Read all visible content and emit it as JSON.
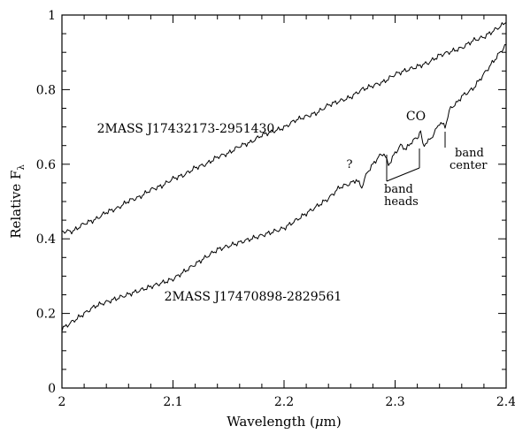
{
  "chart_data": {
    "type": "line",
    "xlabel": "Wavelength (μm)",
    "ylabel": "Relative F",
    "ylabel_subscript": "λ",
    "xlim": [
      2.0,
      2.4
    ],
    "ylim": [
      0.0,
      1.0
    ],
    "xticks": [
      "2",
      "2.1",
      "2.2",
      "2.3",
      "2.4"
    ],
    "yticks": [
      "0",
      "0.2",
      "0.4",
      "0.6",
      "0.8",
      "1"
    ],
    "grid": false,
    "series": [
      {
        "name": "2MASS J17432173-2951430",
        "x": [
          2.0,
          2.01,
          2.02,
          2.03,
          2.04,
          2.05,
          2.06,
          2.07,
          2.08,
          2.09,
          2.1,
          2.11,
          2.12,
          2.13,
          2.14,
          2.15,
          2.16,
          2.17,
          2.18,
          2.19,
          2.2,
          2.21,
          2.22,
          2.23,
          2.24,
          2.25,
          2.26,
          2.27,
          2.28,
          2.29,
          2.3,
          2.31,
          2.32,
          2.33,
          2.34,
          2.35,
          2.36,
          2.37,
          2.38,
          2.39,
          2.4
        ],
        "values": [
          0.42,
          0.42,
          0.44,
          0.45,
          0.47,
          0.48,
          0.5,
          0.51,
          0.53,
          0.54,
          0.56,
          0.57,
          0.59,
          0.6,
          0.62,
          0.63,
          0.65,
          0.66,
          0.68,
          0.69,
          0.7,
          0.72,
          0.73,
          0.74,
          0.76,
          0.77,
          0.78,
          0.8,
          0.81,
          0.82,
          0.84,
          0.85,
          0.86,
          0.87,
          0.89,
          0.9,
          0.91,
          0.93,
          0.94,
          0.96,
          0.98
        ]
      },
      {
        "name": "2MASS J17470898-2829561",
        "x": [
          2.0,
          2.01,
          2.02,
          2.03,
          2.04,
          2.05,
          2.06,
          2.07,
          2.08,
          2.09,
          2.1,
          2.11,
          2.12,
          2.13,
          2.14,
          2.15,
          2.16,
          2.17,
          2.18,
          2.19,
          2.2,
          2.21,
          2.22,
          2.23,
          2.24,
          2.25,
          2.26,
          2.265,
          2.27,
          2.275,
          2.28,
          2.285,
          2.29,
          2.294,
          2.3,
          2.305,
          2.31,
          2.315,
          2.32,
          2.323,
          2.325,
          2.33,
          2.335,
          2.34,
          2.345,
          2.35,
          2.355,
          2.36,
          2.365,
          2.37,
          2.375,
          2.38,
          2.385,
          2.39,
          2.395,
          2.4
        ],
        "values": [
          0.16,
          0.18,
          0.2,
          0.22,
          0.23,
          0.24,
          0.25,
          0.26,
          0.27,
          0.28,
          0.29,
          0.31,
          0.33,
          0.35,
          0.37,
          0.38,
          0.39,
          0.4,
          0.41,
          0.42,
          0.43,
          0.45,
          0.47,
          0.49,
          0.51,
          0.54,
          0.55,
          0.56,
          0.54,
          0.58,
          0.6,
          0.62,
          0.63,
          0.6,
          0.63,
          0.65,
          0.64,
          0.66,
          0.67,
          0.69,
          0.65,
          0.66,
          0.68,
          0.71,
          0.7,
          0.75,
          0.76,
          0.78,
          0.79,
          0.8,
          0.82,
          0.84,
          0.86,
          0.88,
          0.9,
          0.92
        ]
      }
    ],
    "annotations": {
      "question": "?",
      "co": "CO",
      "band_heads_line1": "band",
      "band_heads_line2": "heads",
      "band_center_line1": "band",
      "band_center_line2": "center"
    }
  }
}
